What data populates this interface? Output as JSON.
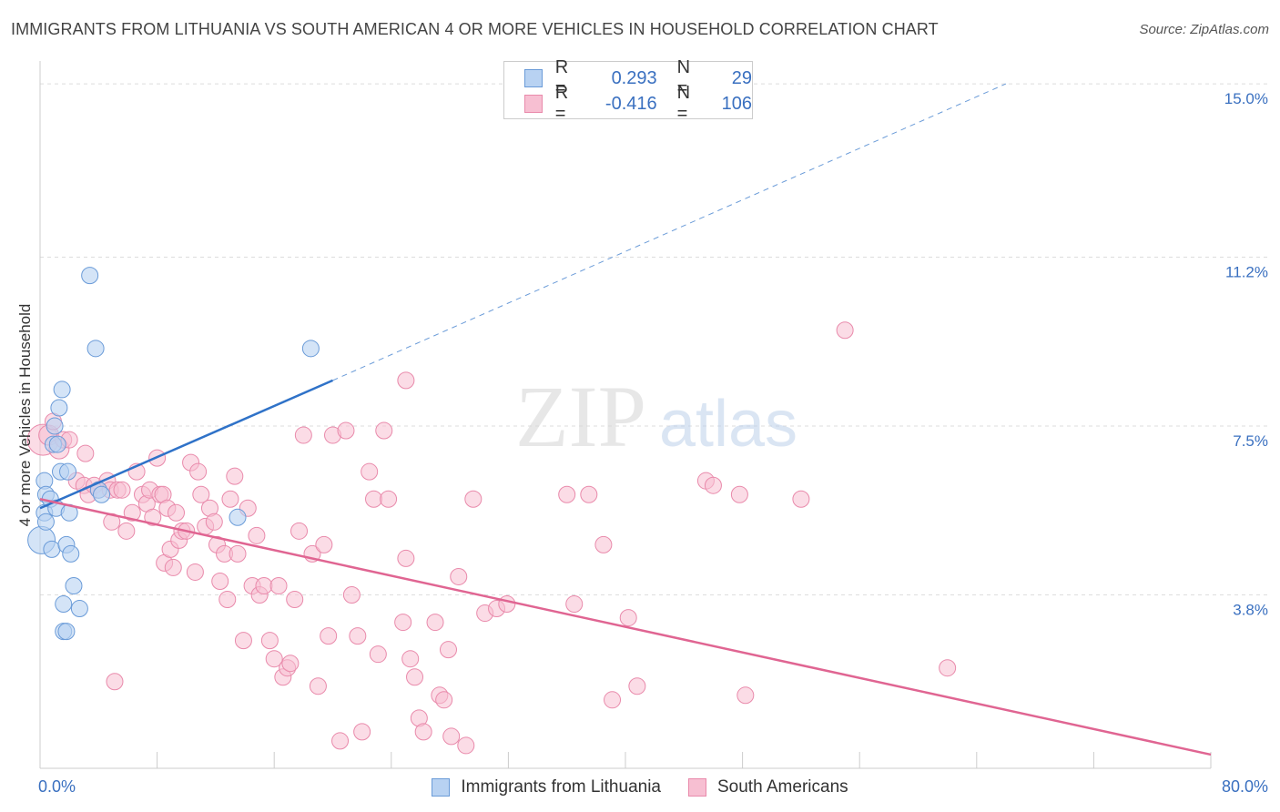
{
  "header": {
    "title": "IMMIGRANTS FROM LITHUANIA VS SOUTH AMERICAN 4 OR MORE VEHICLES IN HOUSEHOLD CORRELATION CHART",
    "source": "Source: ZipAtlas.com"
  },
  "watermark": {
    "zip": "ZIP",
    "atlas": "atlas"
  },
  "legend": {
    "rows": [
      {
        "r_label": "R =",
        "r_value": "0.293",
        "n_label": "N =",
        "n_value": "29"
      },
      {
        "r_label": "R =",
        "r_value": "-0.416",
        "n_label": "N =",
        "n_value": "106"
      }
    ]
  },
  "bottom_legend": {
    "items": [
      "Immigrants from Lithuania",
      "South Americans"
    ]
  },
  "colors": {
    "blue_fill": "#b8d2f2",
    "blue_stroke": "#6a9bd8",
    "blue_line": "#2f72c8",
    "pink_fill": "#f7bfd2",
    "pink_stroke": "#e98aab",
    "pink_line": "#e06592",
    "tick_text": "#3a70c0",
    "grid": "#dddddd"
  },
  "chart_data": {
    "type": "scatter",
    "title": "IMMIGRANTS FROM LITHUANIA VS SOUTH AMERICAN 4 OR MORE VEHICLES IN HOUSEHOLD CORRELATION CHART",
    "xlabel": "",
    "ylabel": "4 or more Vehicles in Household",
    "xlim": [
      0,
      80
    ],
    "ylim": [
      0,
      15.5
    ],
    "x_tick_labels": [
      "0.0%",
      "80.0%"
    ],
    "y_ticks": [
      3.8,
      7.5,
      11.2,
      15.0
    ],
    "y_tick_labels": [
      "3.8%",
      "7.5%",
      "11.2%",
      "15.0%"
    ],
    "grid": true,
    "legend_position": "top-center",
    "series": [
      {
        "name": "Immigrants from Lithuania",
        "color": "#6a9bd8",
        "r": 0.293,
        "n": 29,
        "trend": {
          "x": [
            0,
            20
          ],
          "y": [
            5.7,
            8.5
          ],
          "dashed_extension": {
            "x": [
              20,
              66
            ],
            "y": [
              8.5,
              15.0
            ]
          }
        },
        "points": [
          [
            0.1,
            5.0,
            14
          ],
          [
            0.3,
            6.3,
            8
          ],
          [
            0.4,
            6.0,
            8
          ],
          [
            0.3,
            5.6,
            8
          ],
          [
            0.4,
            5.4,
            8
          ],
          [
            0.7,
            5.9,
            8
          ],
          [
            0.8,
            4.8,
            8
          ],
          [
            0.9,
            7.1,
            8
          ],
          [
            1.0,
            7.5,
            8
          ],
          [
            1.1,
            5.7,
            8
          ],
          [
            1.2,
            7.1,
            8
          ],
          [
            1.3,
            7.9,
            8
          ],
          [
            1.4,
            6.5,
            8
          ],
          [
            1.5,
            8.3,
            8
          ],
          [
            1.6,
            3.0,
            8
          ],
          [
            1.6,
            3.6,
            8
          ],
          [
            1.8,
            3.0,
            8
          ],
          [
            1.8,
            4.9,
            8
          ],
          [
            1.9,
            6.5,
            8
          ],
          [
            2.0,
            5.6,
            8
          ],
          [
            2.1,
            4.7,
            8
          ],
          [
            2.3,
            4.0,
            8
          ],
          [
            2.7,
            3.5,
            8
          ],
          [
            3.4,
            10.8,
            8
          ],
          [
            3.8,
            9.2,
            8
          ],
          [
            4.0,
            6.1,
            8
          ],
          [
            4.2,
            6.0,
            8
          ],
          [
            13.5,
            5.5,
            8
          ],
          [
            18.5,
            9.2,
            8
          ]
        ]
      },
      {
        "name": "South Americans",
        "color": "#e98aab",
        "r": -0.416,
        "n": 106,
        "trend": {
          "x": [
            0,
            80
          ],
          "y": [
            5.9,
            0.3
          ]
        },
        "points": [
          [
            0.2,
            7.2,
            16
          ],
          [
            0.6,
            7.3,
            10
          ],
          [
            0.9,
            7.6,
            8
          ],
          [
            1.3,
            7.0,
            10
          ],
          [
            1.6,
            7.2,
            8
          ],
          [
            2.0,
            7.2,
            8
          ],
          [
            2.5,
            6.3,
            8
          ],
          [
            3.0,
            6.2,
            8
          ],
          [
            3.3,
            6.0,
            8
          ],
          [
            3.7,
            6.2,
            8
          ],
          [
            3.1,
            6.9,
            8
          ],
          [
            4.0,
            6.1,
            8
          ],
          [
            4.6,
            6.3,
            8
          ],
          [
            4.8,
            6.1,
            8
          ],
          [
            4.9,
            5.4,
            8
          ],
          [
            5.1,
            1.9,
            8
          ],
          [
            5.3,
            6.1,
            8
          ],
          [
            5.6,
            6.1,
            8
          ],
          [
            5.9,
            5.2,
            8
          ],
          [
            6.3,
            5.6,
            8
          ],
          [
            6.6,
            6.5,
            8
          ],
          [
            7.0,
            6.0,
            8
          ],
          [
            7.3,
            5.8,
            8
          ],
          [
            7.5,
            6.1,
            8
          ],
          [
            7.7,
            5.5,
            8
          ],
          [
            8.0,
            6.8,
            8
          ],
          [
            8.2,
            6.0,
            8
          ],
          [
            8.4,
            6.0,
            8
          ],
          [
            8.5,
            4.5,
            8
          ],
          [
            8.7,
            5.7,
            8
          ],
          [
            8.9,
            4.8,
            8
          ],
          [
            9.1,
            4.4,
            8
          ],
          [
            9.3,
            5.6,
            8
          ],
          [
            9.5,
            5.0,
            8
          ],
          [
            9.7,
            5.2,
            8
          ],
          [
            10.0,
            5.2,
            8
          ],
          [
            10.3,
            6.7,
            8
          ],
          [
            10.6,
            4.3,
            8
          ],
          [
            10.8,
            6.5,
            8
          ],
          [
            11.0,
            6.0,
            8
          ],
          [
            11.3,
            5.3,
            8
          ],
          [
            11.6,
            5.7,
            8
          ],
          [
            11.9,
            5.4,
            8
          ],
          [
            12.1,
            4.9,
            8
          ],
          [
            12.3,
            4.1,
            8
          ],
          [
            12.6,
            4.7,
            8
          ],
          [
            12.8,
            3.7,
            8
          ],
          [
            13.0,
            5.9,
            8
          ],
          [
            13.3,
            6.4,
            8
          ],
          [
            13.5,
            4.7,
            8
          ],
          [
            13.9,
            2.8,
            8
          ],
          [
            14.2,
            5.7,
            8
          ],
          [
            14.5,
            4.0,
            8
          ],
          [
            14.8,
            5.1,
            8
          ],
          [
            15.0,
            3.8,
            8
          ],
          [
            15.3,
            4.0,
            8
          ],
          [
            15.7,
            2.8,
            8
          ],
          [
            16.0,
            2.4,
            8
          ],
          [
            16.3,
            4.0,
            8
          ],
          [
            16.6,
            2.0,
            8
          ],
          [
            16.9,
            2.2,
            8
          ],
          [
            17.1,
            2.3,
            8
          ],
          [
            17.4,
            3.7,
            8
          ],
          [
            17.7,
            5.2,
            8
          ],
          [
            18.0,
            7.3,
            8
          ],
          [
            18.6,
            4.7,
            8
          ],
          [
            19.0,
            1.8,
            8
          ],
          [
            19.4,
            4.9,
            8
          ],
          [
            19.7,
            2.9,
            8
          ],
          [
            20.0,
            7.3,
            8
          ],
          [
            20.5,
            0.6,
            8
          ],
          [
            20.9,
            7.4,
            8
          ],
          [
            21.3,
            3.8,
            8
          ],
          [
            21.7,
            2.9,
            8
          ],
          [
            22.0,
            0.8,
            8
          ],
          [
            22.5,
            6.5,
            8
          ],
          [
            22.8,
            5.9,
            8
          ],
          [
            23.1,
            2.5,
            8
          ],
          [
            23.5,
            7.4,
            8
          ],
          [
            23.8,
            5.9,
            8
          ],
          [
            25.0,
            4.6,
            8
          ],
          [
            25.3,
            2.4,
            8
          ],
          [
            25.6,
            2.0,
            8
          ],
          [
            25.9,
            1.1,
            8
          ],
          [
            26.2,
            0.8,
            8
          ],
          [
            27.0,
            3.2,
            8
          ],
          [
            27.3,
            1.6,
            8
          ],
          [
            27.6,
            1.5,
            8
          ],
          [
            28.1,
            0.7,
            8
          ],
          [
            27.9,
            2.6,
            8
          ],
          [
            28.6,
            4.2,
            8
          ],
          [
            29.1,
            0.5,
            8
          ],
          [
            29.6,
            5.9,
            8
          ],
          [
            30.4,
            3.4,
            8
          ],
          [
            31.2,
            3.5,
            8
          ],
          [
            31.9,
            3.6,
            8
          ],
          [
            36.0,
            6.0,
            8
          ],
          [
            36.5,
            3.6,
            8
          ],
          [
            37.5,
            6.0,
            8
          ],
          [
            38.5,
            4.9,
            8
          ],
          [
            39.1,
            1.5,
            8
          ],
          [
            40.2,
            3.3,
            8
          ],
          [
            40.8,
            1.8,
            8
          ],
          [
            45.5,
            6.3,
            8
          ],
          [
            46.0,
            6.2,
            8
          ],
          [
            47.8,
            6.0,
            8
          ],
          [
            48.2,
            1.6,
            8
          ],
          [
            52.0,
            5.9,
            8
          ],
          [
            55.0,
            9.6,
            8
          ],
          [
            62.0,
            2.2,
            8
          ],
          [
            25.0,
            8.5,
            8
          ],
          [
            24.8,
            3.2,
            8
          ]
        ]
      }
    ]
  }
}
